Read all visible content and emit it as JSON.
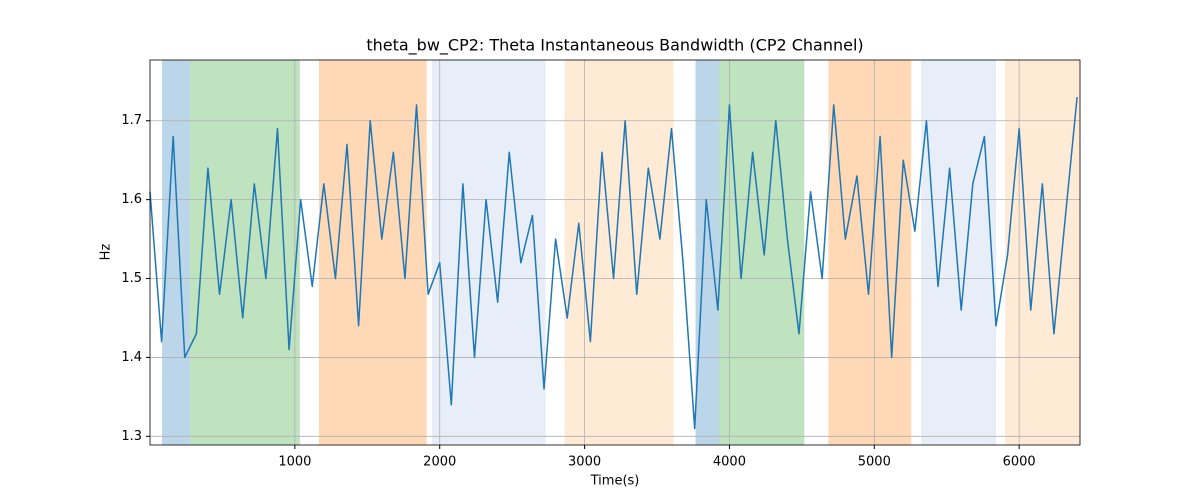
{
  "chart_data": {
    "type": "line",
    "title": "theta_bw_CP2: Theta Instantaneous Bandwidth (CP2 Channel)",
    "x_label": "Time(s)",
    "y_label": "Hz",
    "x": [
      0,
      80,
      160,
      240,
      320,
      400,
      480,
      560,
      640,
      720,
      800,
      880,
      960,
      1040,
      1120,
      1200,
      1280,
      1360,
      1440,
      1520,
      1600,
      1680,
      1760,
      1840,
      1920,
      2000,
      2080,
      2160,
      2240,
      2320,
      2400,
      2480,
      2560,
      2640,
      2720,
      2800,
      2880,
      2960,
      3040,
      3120,
      3200,
      3280,
      3360,
      3440,
      3520,
      3600,
      3680,
      3760,
      3840,
      3920,
      4000,
      4080,
      4160,
      4240,
      4320,
      4400,
      4480,
      4560,
      4640,
      4720,
      4800,
      4880,
      4960,
      5040,
      5120,
      5200,
      5280,
      5360,
      5440,
      5520,
      5600,
      5680,
      5760,
      5840,
      5920,
      6000,
      6080,
      6160,
      6240,
      6320,
      6400
    ],
    "series": [
      {
        "color": "#1f77b4",
        "values": [
          1.61,
          1.42,
          1.68,
          1.4,
          1.43,
          1.64,
          1.48,
          1.6,
          1.45,
          1.62,
          1.5,
          1.69,
          1.41,
          1.6,
          1.49,
          1.62,
          1.5,
          1.67,
          1.44,
          1.7,
          1.55,
          1.66,
          1.5,
          1.72,
          1.48,
          1.52,
          1.34,
          1.62,
          1.4,
          1.6,
          1.47,
          1.66,
          1.52,
          1.58,
          1.36,
          1.55,
          1.45,
          1.57,
          1.42,
          1.66,
          1.5,
          1.7,
          1.48,
          1.64,
          1.55,
          1.69,
          1.52,
          1.31,
          1.6,
          1.46,
          1.72,
          1.5,
          1.66,
          1.53,
          1.7,
          1.55,
          1.43,
          1.61,
          1.5,
          1.72,
          1.55,
          1.63,
          1.48,
          1.68,
          1.4,
          1.65,
          1.56,
          1.7,
          1.49,
          1.64,
          1.46,
          1.62,
          1.68,
          1.44,
          1.53,
          1.69,
          1.46,
          1.62,
          1.43,
          1.58,
          1.73
        ]
      }
    ],
    "spans": [
      {
        "start": 83,
        "end": 276,
        "color": "#1f77b4"
      },
      {
        "start": 276,
        "end": 1034,
        "color": "#2ca02c"
      },
      {
        "start": 1166,
        "end": 1910,
        "color": "#ff7f0e"
      },
      {
        "start": 1945,
        "end": 2731,
        "color": "#aec7e8"
      },
      {
        "start": 2862,
        "end": 3614,
        "color": "#ffbb78"
      },
      {
        "start": 3766,
        "end": 3931,
        "color": "#1f77b4"
      },
      {
        "start": 3931,
        "end": 4517,
        "color": "#2ca02c"
      },
      {
        "start": 4683,
        "end": 5255,
        "color": "#ff7f0e"
      },
      {
        "start": 5324,
        "end": 5841,
        "color": "#aec7e8"
      },
      {
        "start": 5903,
        "end": 6420,
        "color": "#ffbb78"
      }
    ],
    "span_alpha": 0.3,
    "xlim": [
      0,
      6420
    ],
    "ylim": [
      1.289,
      1.777
    ],
    "xticks": [
      1000,
      2000,
      3000,
      4000,
      5000,
      6000
    ],
    "yticks": [
      1.3,
      1.4,
      1.5,
      1.6,
      1.7
    ],
    "grid": true
  }
}
